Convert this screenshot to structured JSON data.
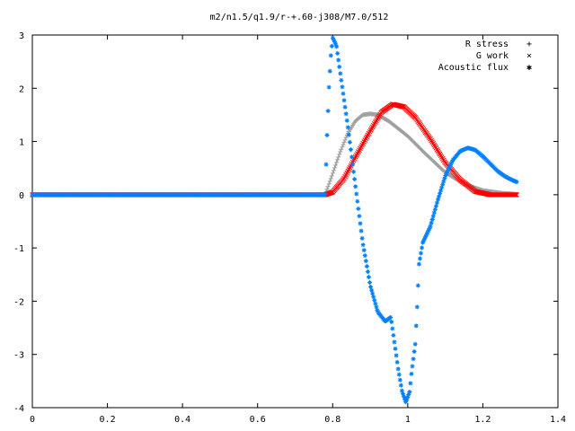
{
  "chart_data": {
    "type": "scatter",
    "title": "m2/n1.5/q1.9/r-+.60-j308/M7.0/512",
    "xlabel": "",
    "ylabel": "",
    "xlim": [
      0,
      1.4
    ],
    "ylim": [
      -4,
      3
    ],
    "xticks": [
      "0",
      "0.2",
      "0.4",
      "0.6",
      "0.8",
      "1",
      "1.2",
      "1.4"
    ],
    "yticks": [
      "3",
      "2",
      "1",
      "0",
      "-1",
      "-2",
      "-3",
      "-4"
    ],
    "grid": false,
    "legend_position": "top-right",
    "series": [
      {
        "name": "R stress",
        "marker": "plus",
        "color": "#a0a0a0",
        "x_range": [
          0,
          1.29
        ],
        "points": [
          [
            0.0,
            0
          ],
          [
            0.7,
            0
          ],
          [
            0.78,
            0.0
          ],
          [
            0.8,
            0.4
          ],
          [
            0.82,
            0.8
          ],
          [
            0.84,
            1.15
          ],
          [
            0.86,
            1.38
          ],
          [
            0.88,
            1.5
          ],
          [
            0.9,
            1.52
          ],
          [
            0.92,
            1.5
          ],
          [
            0.95,
            1.38
          ],
          [
            1.0,
            1.1
          ],
          [
            1.05,
            0.75
          ],
          [
            1.1,
            0.42
          ],
          [
            1.15,
            0.2
          ],
          [
            1.2,
            0.08
          ],
          [
            1.25,
            0.03
          ],
          [
            1.29,
            0.01
          ]
        ]
      },
      {
        "name": "G work",
        "marker": "cross",
        "color": "#ff0000",
        "x_range": [
          0,
          1.29
        ],
        "points": [
          [
            0.0,
            0
          ],
          [
            0.7,
            0
          ],
          [
            0.78,
            0.0
          ],
          [
            0.8,
            0.05
          ],
          [
            0.83,
            0.3
          ],
          [
            0.86,
            0.7
          ],
          [
            0.9,
            1.2
          ],
          [
            0.93,
            1.55
          ],
          [
            0.96,
            1.7
          ],
          [
            0.99,
            1.65
          ],
          [
            1.02,
            1.45
          ],
          [
            1.06,
            1.05
          ],
          [
            1.1,
            0.6
          ],
          [
            1.14,
            0.28
          ],
          [
            1.18,
            0.06
          ],
          [
            1.22,
            0.0
          ],
          [
            1.29,
            0.0
          ]
        ]
      },
      {
        "name": "Acoustic flux",
        "marker": "star",
        "color": "#0080ff",
        "x_range": [
          0,
          1.29
        ],
        "points": [
          [
            0.0,
            0
          ],
          [
            0.7,
            0
          ],
          [
            0.78,
            0.0
          ],
          [
            0.785,
            1.1
          ],
          [
            0.79,
            2.0
          ],
          [
            0.795,
            2.6
          ],
          [
            0.8,
            2.95
          ],
          [
            0.81,
            2.8
          ],
          [
            0.82,
            2.3
          ],
          [
            0.84,
            1.3
          ],
          [
            0.86,
            0.2
          ],
          [
            0.88,
            -0.9
          ],
          [
            0.9,
            -1.7
          ],
          [
            0.92,
            -2.2
          ],
          [
            0.94,
            -2.38
          ],
          [
            0.955,
            -2.3
          ],
          [
            0.965,
            -2.8
          ],
          [
            0.975,
            -3.3
          ],
          [
            0.985,
            -3.7
          ],
          [
            0.995,
            -3.9
          ],
          [
            1.005,
            -3.7
          ],
          [
            1.01,
            -3.35
          ],
          [
            1.02,
            -2.8
          ],
          [
            1.025,
            -2.1
          ],
          [
            1.03,
            -1.3
          ],
          [
            1.04,
            -0.9
          ],
          [
            1.06,
            -0.6
          ],
          [
            1.08,
            -0.1
          ],
          [
            1.1,
            0.35
          ],
          [
            1.12,
            0.65
          ],
          [
            1.14,
            0.82
          ],
          [
            1.16,
            0.88
          ],
          [
            1.18,
            0.84
          ],
          [
            1.2,
            0.72
          ],
          [
            1.22,
            0.58
          ],
          [
            1.24,
            0.44
          ],
          [
            1.26,
            0.34
          ],
          [
            1.28,
            0.27
          ],
          [
            1.29,
            0.24
          ]
        ]
      }
    ]
  },
  "legend": {
    "items": [
      {
        "label": "R stress",
        "glyph": "+",
        "color": "#a0a0a0"
      },
      {
        "label": "G work",
        "glyph": "×",
        "color": "#ff0000"
      },
      {
        "label": "Acoustic flux",
        "glyph": "✱",
        "color": "#0080ff"
      }
    ]
  }
}
